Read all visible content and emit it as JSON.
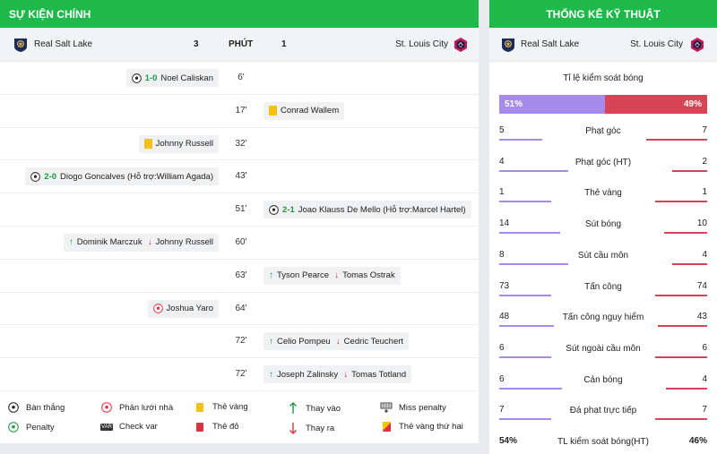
{
  "colors": {
    "header_green": "#1fb84a",
    "home": "#a78bea",
    "away": "#d64555",
    "goal_score": "#1a9a45"
  },
  "events_panel": {
    "title": "SỰ KIỆN CHÍNH",
    "home_team": "Real Salt Lake",
    "home_score": "3",
    "minute_header": "PHÚT",
    "away_score": "1",
    "away_team": "St. Louis City",
    "rows": [
      {
        "minute": "6'",
        "side": "home",
        "icon": "goal-icon",
        "score": "1-0",
        "text": "Noel Caliskan"
      },
      {
        "minute": "17'",
        "side": "away",
        "icon": "yellow-card-icon",
        "text": "Conrad Wallem"
      },
      {
        "minute": "32'",
        "side": "home",
        "icon": "yellow-card-icon",
        "text": "Johnny Russell"
      },
      {
        "minute": "43'",
        "side": "home",
        "icon": "goal-icon",
        "score": "2-0",
        "text": "Diogo Goncalves (Hỗ trợ:William Agada)"
      },
      {
        "minute": "51'",
        "side": "away",
        "icon": "goal-icon",
        "score": "2-1",
        "text": "Joao Klauss De Mello (Hỗ trợ:Marcel Hartel)"
      },
      {
        "minute": "60'",
        "side": "home",
        "icon": "substitution-icon",
        "in": "Dominik Marczuk",
        "out": "Johnny Russell"
      },
      {
        "minute": "63'",
        "side": "away",
        "icon": "substitution-icon",
        "in": "Tyson Pearce",
        "out": "Tomas Ostrak"
      },
      {
        "minute": "64'",
        "side": "home",
        "icon": "own-goal-icon",
        "text": "Joshua Yaro"
      },
      {
        "minute": "72'",
        "side": "away",
        "icon": "substitution-icon",
        "in": "Celio Pompeu",
        "out": "Cedric Teuchert"
      },
      {
        "minute": "72'",
        "side": "away",
        "icon": "substitution-icon",
        "in": "Joseph Zalinsky",
        "out": "Tomas Totland"
      }
    ]
  },
  "legend": {
    "goal": "Bàn thắng",
    "own_goal": "Phản lưới nhà",
    "yellow": "Thẻ vàng",
    "sub_in": "Thay vào",
    "miss_penalty": "Miss penalty",
    "penalty": "Penalty",
    "var": "Check var",
    "var_icon_text": "VAR",
    "red": "Thẻ đỏ",
    "sub_out": "Thay ra",
    "second_yellow": "Thẻ vàng thứ hai"
  },
  "stats_panel": {
    "title": "THỐNG KÊ KỸ THUẬT",
    "home_team": "Real Salt Lake",
    "away_team": "St. Louis City",
    "possession_label": "Tỉ lệ kiểm soát bóng",
    "possession_home": "51%",
    "possession_away": "49%",
    "possession_home_value": 51,
    "possession_away_value": 49,
    "stats": [
      {
        "label": "Phạt góc",
        "home": "5",
        "away": "7"
      },
      {
        "label": "Phạt góc (HT)",
        "home": "4",
        "away": "2"
      },
      {
        "label": "Thẻ vàng",
        "home": "1",
        "away": "1"
      },
      {
        "label": "Sút bóng",
        "home": "14",
        "away": "10"
      },
      {
        "label": "Sút cầu môn",
        "home": "8",
        "away": "4"
      },
      {
        "label": "Tấn công",
        "home": "73",
        "away": "74"
      },
      {
        "label": "Tấn công nguy hiểm",
        "home": "48",
        "away": "43"
      },
      {
        "label": "Sút ngoài cầu môn",
        "home": "6",
        "away": "6"
      },
      {
        "label": "Cản bóng",
        "home": "6",
        "away": "4"
      },
      {
        "label": "Đá phạt trực tiếp",
        "home": "7",
        "away": "7"
      },
      {
        "label": "TL kiểm soát bóng(HT)",
        "home": "54%",
        "away": "46%"
      }
    ]
  }
}
